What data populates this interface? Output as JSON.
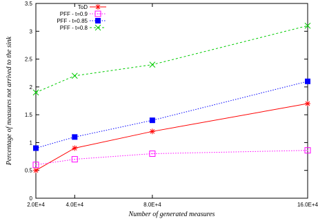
{
  "chart_data": {
    "type": "line",
    "xlabel": "Number of generated measures",
    "ylabel": "Percentage of measures not arrived to the sink",
    "x": [
      20000,
      40000,
      80000,
      160000
    ],
    "x_tick_labels": [
      "2.0E+4",
      "4.0E+4",
      "8.0E+4",
      "16.0E+4"
    ],
    "xlim": [
      20000,
      160000
    ],
    "ylim": [
      0,
      3.5
    ],
    "y_ticks": [
      0,
      0.5,
      1,
      1.5,
      2,
      2.5,
      3,
      3.5
    ],
    "y_tick_labels": [
      "0",
      "0.5",
      "1",
      "1.5",
      "2",
      "2.5",
      "3",
      "3.5"
    ],
    "grid": false,
    "legend_position": "top-left",
    "series": [
      {
        "name": "ToD",
        "values": [
          0.5,
          0.9,
          1.2,
          1.7
        ],
        "color": "#ff0000",
        "marker": "star",
        "dash": "solid"
      },
      {
        "name": "PFF - t=0.9",
        "values": [
          0.6,
          0.7,
          0.8,
          0.86
        ],
        "color": "#ff00ff",
        "marker": "square-dot",
        "dash": "dotted"
      },
      {
        "name": "PFF - t=0.85",
        "values": [
          0.9,
          1.1,
          1.4,
          2.1
        ],
        "color": "#0000ff",
        "marker": "filled-square",
        "dash": "dotted"
      },
      {
        "name": "PFF - t=0.8",
        "values": [
          1.9,
          2.2,
          2.4,
          3.1
        ],
        "color": "#00cc00",
        "marker": "cross",
        "dash": "dashed"
      }
    ]
  }
}
